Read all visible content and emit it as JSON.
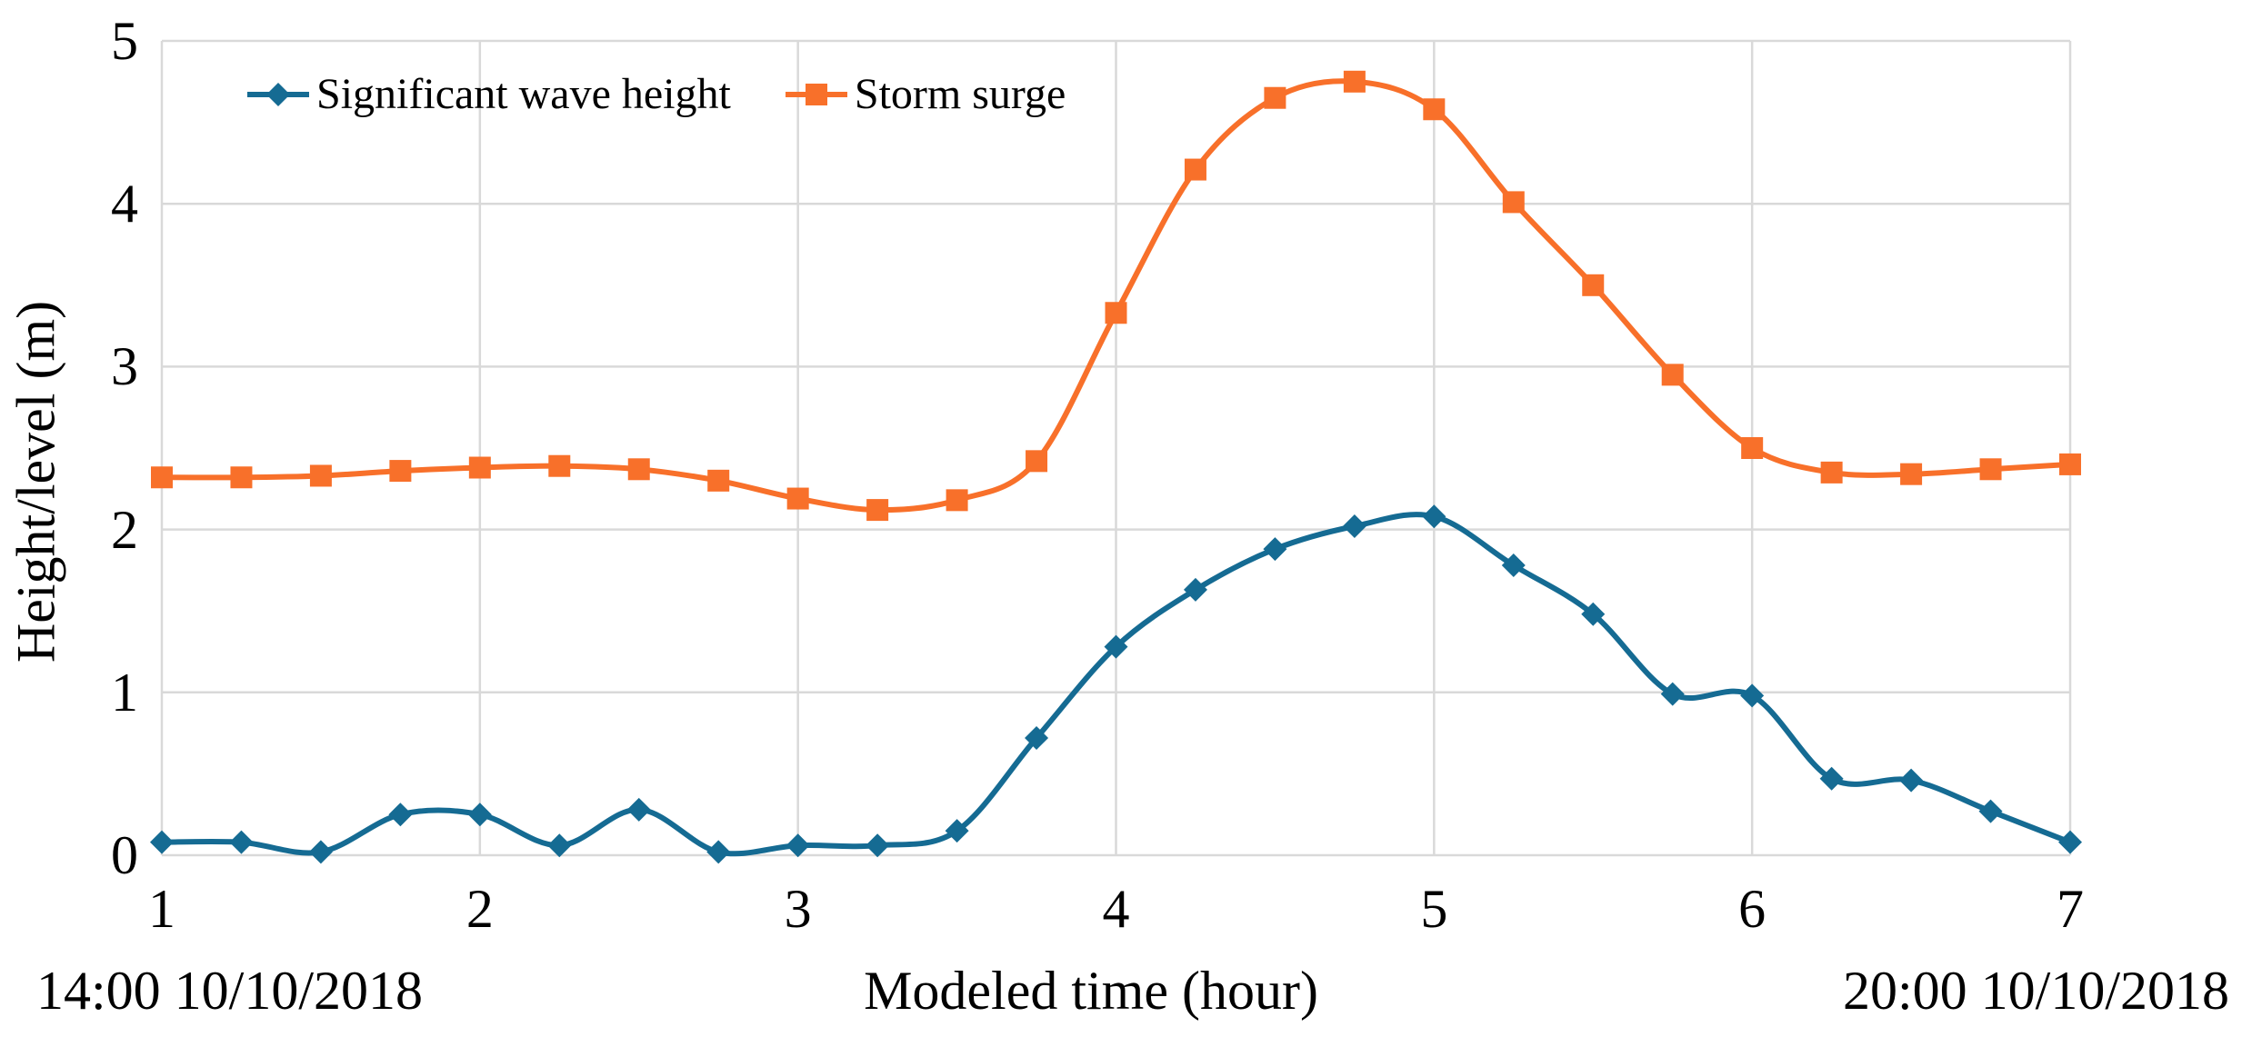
{
  "chart_data": {
    "type": "line",
    "title": "",
    "xlabel": "Modeled time (hour)",
    "ylabel": "Height/level (m)",
    "x_start_annotation": "14:00 10/10/2018",
    "x_end_annotation": "20:00 10/10/2018",
    "xlim": [
      1,
      7
    ],
    "ylim": [
      0,
      5
    ],
    "xticks": [
      "1",
      "2",
      "3",
      "4",
      "5",
      "6",
      "7"
    ],
    "yticks": [
      "0",
      "1",
      "2",
      "3",
      "4",
      "5"
    ],
    "grid": true,
    "gridline_color": "#d9d9d9",
    "background_color": "#ffffff",
    "text_color": "#000000",
    "legend_position": "top-inside",
    "line_style": "smooth",
    "x": [
      1,
      1.25,
      1.5,
      1.75,
      2,
      2.25,
      2.5,
      2.75,
      3,
      3.25,
      3.5,
      3.75,
      4,
      4.25,
      4.5,
      4.75,
      5,
      5.25,
      5.5,
      5.75,
      6,
      6.25,
      6.5,
      6.75,
      7
    ],
    "series": [
      {
        "name": "Significant wave height",
        "color": "#156b93",
        "marker": "diamond",
        "values": [
          0.08,
          0.08,
          0.02,
          0.25,
          0.25,
          0.06,
          0.28,
          0.02,
          0.06,
          0.06,
          0.15,
          0.72,
          1.28,
          1.63,
          1.88,
          2.02,
          2.08,
          1.78,
          1.48,
          0.99,
          0.98,
          0.47,
          0.46,
          0.27,
          0.08
        ]
      },
      {
        "name": "Storm surge",
        "color": "#f8702a",
        "marker": "square",
        "values": [
          2.32,
          2.32,
          2.33,
          2.36,
          2.38,
          2.39,
          2.37,
          2.3,
          2.19,
          2.12,
          2.18,
          2.42,
          3.33,
          4.21,
          4.65,
          4.75,
          4.58,
          4.01,
          3.5,
          2.95,
          2.5,
          2.35,
          2.34,
          2.37,
          2.4
        ]
      }
    ]
  }
}
